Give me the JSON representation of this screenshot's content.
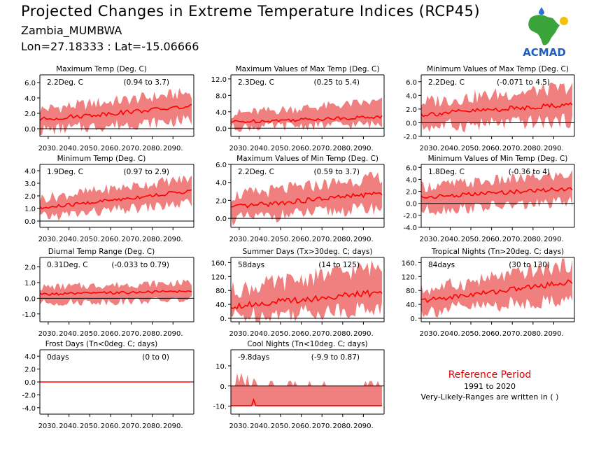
{
  "header": {
    "title": "Projected Changes in Extreme Temperature Indices (RCP45)",
    "location": "Zambia_MUMBWA",
    "coords": "Lon=27.18333 : Lat=-15.06666",
    "logo_text": "ACMAD"
  },
  "reference": {
    "title": "Reference Period",
    "period": "1991 to 2020",
    "note": "Very-Likely-Ranges are written in ( )"
  },
  "colors": {
    "band": "#f08080",
    "line": "#ff0000",
    "zero": "#000000",
    "ref_title": "#e00000"
  },
  "chart_data": [
    {
      "type": "area",
      "title": "Maximum Temp (Deg. C)",
      "summary": "2.2Deg. C",
      "range": "(0.94 to 3.7)",
      "x_ticks": [
        "2030.",
        "2040.",
        "2050.",
        "2060.",
        "2070.",
        "2080.",
        "2090."
      ],
      "y_ticks": [
        "0.0",
        "2.0",
        "4.0",
        "6.0"
      ],
      "ylim": [
        -1,
        7
      ],
      "xlim": [
        2026,
        2100
      ],
      "median_start": 1.2,
      "median_end": 2.9,
      "band_lower_start": -0.2,
      "band_lower_end": 1.1,
      "band_upper_start": 2.5,
      "band_upper_end": 4.7
    },
    {
      "type": "area",
      "title": "Maximum Values of Max Temp (Deg. C)",
      "summary": "2.3Deg. C",
      "range": "(0.25 to 5.4)",
      "x_ticks": [
        "2030.",
        "2040.",
        "2050.",
        "2060.",
        "2070.",
        "2080.",
        "2090."
      ],
      "y_ticks": [
        "0.0",
        "4.0",
        "8.0",
        "12.0"
      ],
      "ylim": [
        -2,
        13
      ],
      "xlim": [
        2026,
        2100
      ],
      "median_start": 1.5,
      "median_end": 2.8,
      "band_lower_start": 0.2,
      "band_lower_end": 1.0,
      "band_upper_start": 3.5,
      "band_upper_end": 6.5
    },
    {
      "type": "area",
      "title": "Minimum Values of Max Temp (Deg. C)",
      "summary": "2.2Deg. C",
      "range": "(-0.071 to 4.5)",
      "x_ticks": [
        "2030.",
        "2040.",
        "2050.",
        "2060.",
        "2070.",
        "2080.",
        "2090."
      ],
      "y_ticks": [
        "-2.0",
        "0.0",
        "2.0",
        "4.0",
        "6.0"
      ],
      "ylim": [
        -2,
        7
      ],
      "xlim": [
        2026,
        2100
      ],
      "median_start": 1.2,
      "median_end": 2.7,
      "band_lower_start": -0.6,
      "band_lower_end": 0.3,
      "band_upper_start": 3.0,
      "band_upper_end": 5.2
    },
    {
      "type": "area",
      "title": "Minimum Temp (Deg. C)",
      "summary": "1.9Deg. C",
      "range": "(0.97 to 2.9)",
      "x_ticks": [
        "2030.",
        "2040.",
        "2050.",
        "2060.",
        "2070.",
        "2080.",
        "2090."
      ],
      "y_ticks": [
        "0.0",
        "1.0",
        "2.0",
        "3.0",
        "4.0"
      ],
      "ylim": [
        -0.5,
        4.5
      ],
      "xlim": [
        2026,
        2100
      ],
      "median_start": 1.0,
      "median_end": 2.4,
      "band_lower_start": 0.3,
      "band_lower_end": 1.4,
      "band_upper_start": 1.8,
      "band_upper_end": 3.4
    },
    {
      "type": "area",
      "title": "Maximum Values of Min Temp (Deg. C)",
      "summary": "2.2Deg. C",
      "range": "(0.59 to 3.7)",
      "x_ticks": [
        "2030.",
        "2040.",
        "2050.",
        "2060.",
        "2070.",
        "2080.",
        "2090."
      ],
      "y_ticks": [
        "0.0",
        "2.0",
        "4.0",
        "6.0"
      ],
      "ylim": [
        -1,
        6
      ],
      "xlim": [
        2026,
        2100
      ],
      "median_start": 1.2,
      "median_end": 2.8,
      "band_lower_start": -0.1,
      "band_lower_end": 1.2,
      "band_upper_start": 2.5,
      "band_upper_end": 4.6
    },
    {
      "type": "area",
      "title": "Minimum Values of Min Temp (Deg. C)",
      "summary": "1.8Deg. C",
      "range": "(-0.36 to 4)",
      "x_ticks": [
        "2030.",
        "2040.",
        "2050.",
        "2060.",
        "2070.",
        "2080.",
        "2090."
      ],
      "y_ticks": [
        "-4.0",
        "-2.0",
        "0.0",
        "2.0",
        "4.0",
        "6.0"
      ],
      "ylim": [
        -4,
        6.5
      ],
      "xlim": [
        2026,
        2100
      ],
      "median_start": 1.0,
      "median_end": 2.5,
      "band_lower_start": -1.2,
      "band_lower_end": 0.2,
      "band_upper_start": 2.8,
      "band_upper_end": 4.8
    },
    {
      "type": "area",
      "title": "Diurnal Temp Range (Deg. C)",
      "summary": "0.31Deg. C",
      "range": "(-0.033 to 0.79)",
      "x_ticks": [
        "2030.",
        "2040.",
        "2050.",
        "2060.",
        "2070.",
        "2080.",
        "2090."
      ],
      "y_ticks": [
        "-1.0",
        "0.0",
        "1.0",
        "2.0"
      ],
      "ylim": [
        -1.5,
        2.6
      ],
      "xlim": [
        2026,
        2100
      ],
      "median_start": 0.25,
      "median_end": 0.45,
      "band_lower_start": -0.3,
      "band_lower_end": -0.1,
      "band_upper_start": 0.7,
      "band_upper_end": 1.0
    },
    {
      "type": "area",
      "title": "Summer Days (Tx>30deg. C; days)",
      "summary": "58days",
      "range": "(14 to 125)",
      "x_ticks": [
        "2030.",
        "2040.",
        "2050.",
        "2060.",
        "2070.",
        "2080.",
        "2090."
      ],
      "y_ticks": [
        "0.",
        "40.",
        "80.",
        "120.",
        "160."
      ],
      "ylim": [
        -10,
        175
      ],
      "xlim": [
        2026,
        2100
      ],
      "median_start": 35,
      "median_end": 75,
      "band_lower_start": 5,
      "band_lower_end": 30,
      "band_upper_start": 80,
      "band_upper_end": 150
    },
    {
      "type": "area",
      "title": "Tropical Nights (Tn>20deg. C; days)",
      "summary": "84days",
      "range": "(30 to 130)",
      "x_ticks": [
        "2030.",
        "2040.",
        "2050.",
        "2060.",
        "2070.",
        "2080.",
        "2090."
      ],
      "y_ticks": [
        "0.",
        "40.",
        "80.",
        "120.",
        "160."
      ],
      "ylim": [
        -10,
        175
      ],
      "xlim": [
        2026,
        2100
      ],
      "median_start": 50,
      "median_end": 105,
      "band_lower_start": 20,
      "band_lower_end": 55,
      "band_upper_start": 80,
      "band_upper_end": 155
    },
    {
      "type": "area",
      "title": "Frost Days (Tn<0deg. C; days)",
      "summary": "0days",
      "range": "(0 to 0)",
      "x_ticks": [
        "2030.",
        "2040.",
        "2050.",
        "2060.",
        "2070.",
        "2080.",
        "2090."
      ],
      "y_ticks": [
        "-4.0",
        "-2.0",
        "0.0",
        "2.0",
        "4.0"
      ],
      "ylim": [
        -5,
        5
      ],
      "xlim": [
        2026,
        2100
      ],
      "median_start": 0,
      "median_end": 0,
      "band_lower_start": 0,
      "band_lower_end": 0,
      "band_upper_start": 0,
      "band_upper_end": 0
    },
    {
      "type": "area",
      "title": "Cool Nights (Tn<10deg. C; days)",
      "summary": "-9.8days",
      "range": "(-9.9 to 0.87)",
      "x_ticks": [
        "2030.",
        "2040.",
        "2050.",
        "2060.",
        "2070.",
        "2080.",
        "2090."
      ],
      "y_ticks": [
        "-10.",
        "0.",
        "10."
      ],
      "ylim": [
        -14,
        18
      ],
      "xlim": [
        2026,
        2100
      ],
      "median_start": -9.8,
      "median_end": -9.8,
      "band_lower_start": -9.9,
      "band_lower_end": -9.9,
      "band_upper_start": 1.0,
      "band_upper_end": 0.0
    }
  ]
}
